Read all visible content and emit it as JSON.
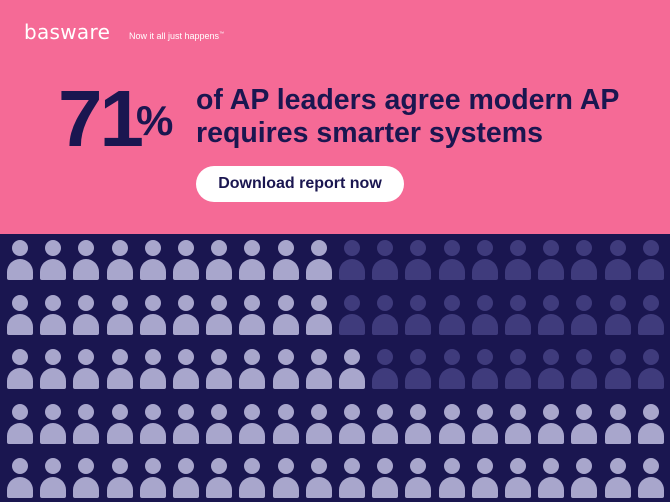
{
  "brand": {
    "logo": "basware",
    "tagline": "Now it all just happens",
    "tagline_mark": "™"
  },
  "stat": {
    "number": "71",
    "percent_sign": "%",
    "headline": "of AP leaders agree modern AP requires smarter systems",
    "percent_value": 71
  },
  "cta": {
    "label": "Download report now"
  },
  "grid": {
    "rows": 5,
    "cols": 20,
    "filled_per_row": [
      10,
      10,
      11,
      20,
      20
    ]
  },
  "colors": {
    "top_background": "#f56a96",
    "bottom_background": "#1a1650",
    "text_dark": "#1a1650",
    "person_filled": "#a8a6cc",
    "person_empty": "#3f3b7c"
  }
}
